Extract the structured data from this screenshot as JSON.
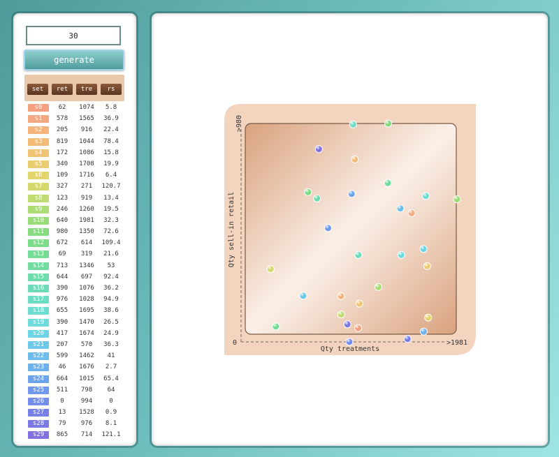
{
  "controls": {
    "count_value": "30",
    "generate_label": "generate"
  },
  "table": {
    "headers": [
      "set",
      "ret",
      "tre",
      "rs"
    ],
    "rows": [
      {
        "set": "s0",
        "ret": "62",
        "tre": "1074",
        "rs": "5.8",
        "color": "#f4a080"
      },
      {
        "set": "s1",
        "ret": "578",
        "tre": "1565",
        "rs": "36.9",
        "color": "#f4a880"
      },
      {
        "set": "s2",
        "ret": "205",
        "tre": "916",
        "rs": "22.4",
        "color": "#f4b47c"
      },
      {
        "set": "s3",
        "ret": "819",
        "tre": "1044",
        "rs": "78.4",
        "color": "#f2bc78"
      },
      {
        "set": "s4",
        "ret": "172",
        "tre": "1086",
        "rs": "15.8",
        "color": "#f0c474"
      },
      {
        "set": "s5",
        "ret": "340",
        "tre": "1708",
        "rs": "19.9",
        "color": "#eccc70"
      },
      {
        "set": "s6",
        "ret": "109",
        "tre": "1716",
        "rs": "6.4",
        "color": "#e4d46c"
      },
      {
        "set": "s7",
        "ret": "327",
        "tre": "271",
        "rs": "120.7",
        "color": "#d4d86c"
      },
      {
        "set": "s8",
        "ret": "123",
        "tre": "919",
        "rs": "13.4",
        "color": "#c0dc70"
      },
      {
        "set": "s9",
        "ret": "246",
        "tre": "1260",
        "rs": "19.5",
        "color": "#acdc74"
      },
      {
        "set": "s10",
        "ret": "640",
        "tre": "1981",
        "rs": "32.3",
        "color": "#98dc78"
      },
      {
        "set": "s11",
        "ret": "980",
        "tre": "1350",
        "rs": "72.6",
        "color": "#88dc80"
      },
      {
        "set": "s12",
        "ret": "672",
        "tre": "614",
        "rs": "109.4",
        "color": "#7cdc88"
      },
      {
        "set": "s13",
        "ret": "69",
        "tre": "319",
        "rs": "21.6",
        "color": "#74dc94"
      },
      {
        "set": "s14",
        "ret": "713",
        "tre": "1346",
        "rs": "53",
        "color": "#70dca0"
      },
      {
        "set": "s15",
        "ret": "644",
        "tre": "697",
        "rs": "92.4",
        "color": "#6cdcac"
      },
      {
        "set": "s16",
        "ret": "390",
        "tre": "1076",
        "rs": "36.2",
        "color": "#6cdcb8"
      },
      {
        "set": "s17",
        "ret": "976",
        "tre": "1028",
        "rs": "94.9",
        "color": "#6cdcc4"
      },
      {
        "set": "s18",
        "ret": "655",
        "tre": "1695",
        "rs": "38.6",
        "color": "#6cdcd0"
      },
      {
        "set": "s19",
        "ret": "390",
        "tre": "1470",
        "rs": "26.5",
        "color": "#6cdcdc"
      },
      {
        "set": "s20",
        "ret": "417",
        "tre": "1674",
        "rs": "24.9",
        "color": "#6cd4e4"
      },
      {
        "set": "s21",
        "ret": "207",
        "tre": "570",
        "rs": "36.3",
        "color": "#6cc8e8"
      },
      {
        "set": "s22",
        "ret": "599",
        "tre": "1462",
        "rs": "41",
        "color": "#6cbcec"
      },
      {
        "set": "s23",
        "ret": "46",
        "tre": "1676",
        "rs": "2.7",
        "color": "#6cb0ec"
      },
      {
        "set": "s24",
        "ret": "664",
        "tre": "1015",
        "rs": "65.4",
        "color": "#6ca4ec"
      },
      {
        "set": "s25",
        "ret": "511",
        "tre": "798",
        "rs": "64",
        "color": "#7098ec"
      },
      {
        "set": "s26",
        "ret": "0",
        "tre": "994",
        "rs": "0",
        "color": "#748cec"
      },
      {
        "set": "s27",
        "ret": "13",
        "tre": "1528",
        "rs": "0.9",
        "color": "#7880e8"
      },
      {
        "set": "s28",
        "ret": "79",
        "tre": "976",
        "rs": "8.1",
        "color": "#7c78e4"
      },
      {
        "set": "s29",
        "ret": "865",
        "tre": "714",
        "rs": "121.1",
        "color": "#8070e0"
      }
    ]
  },
  "chart_data": {
    "type": "scatter",
    "xlabel": "Qty treatments",
    "ylabel": "Qty sell-in retail",
    "x_min_label": "0",
    "x_max_label": ">1981",
    "y_max_label": ">980",
    "xlim": [
      0,
      1981
    ],
    "ylim": [
      0,
      980
    ],
    "points_source": "table.rows (x = tre, y = ret)"
  },
  "colors": {
    "plot_bg": "#f3d5bf",
    "plot_frame": "#7a5a44",
    "teal": "#5fa8a8"
  }
}
